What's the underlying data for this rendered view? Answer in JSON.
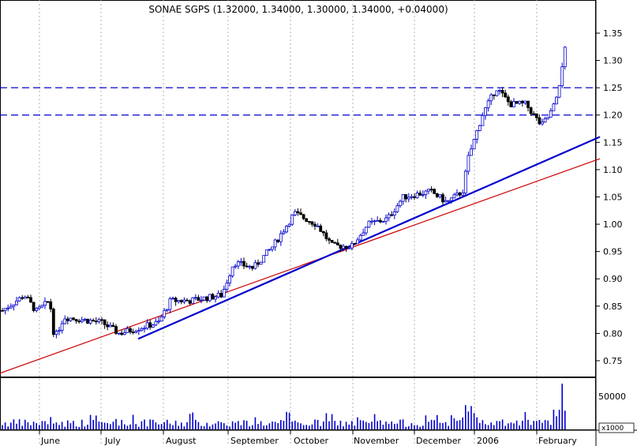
{
  "chart_data": {
    "type": "candlestick",
    "title": "SONAE SGPS (1.32000, 1.34000, 1.30000, 1.34000, +0.04000)",
    "xlabel": "",
    "ylabel": "",
    "ylim": [
      0.72,
      1.37
    ],
    "yticks": [
      "1.35",
      "1.30",
      "1.25",
      "1.20",
      "1.15",
      "1.10",
      "1.05",
      "1.00",
      "0.95",
      "0.90",
      "0.85",
      "0.80",
      "0.75"
    ],
    "x_months": [
      "June",
      "July",
      "August",
      "September",
      "October",
      "November",
      "December",
      "2006",
      "February"
    ],
    "grid": true,
    "legend": "none",
    "colors": {
      "up": "#0000cc",
      "down": "#000000",
      "trend": "#0000cc",
      "support": "#cc0000",
      "resistance": "#0000cc"
    },
    "resistance_levels": [
      1.25,
      1.2
    ],
    "trendlines": [
      {
        "name": "",
        "from_month_position": "July",
        "from_value": 0.79,
        "to_month_position": "end",
        "to_value": 1.16
      },
      {
        "name": "",
        "from_month_position": "start",
        "from_value": 0.73,
        "to_month_position": "end",
        "to_value": 1.12
      }
    ],
    "key_points": [
      {
        "x": "start",
        "y": 0.84
      },
      {
        "x": "May-end",
        "y": 0.87
      },
      {
        "x": "June",
        "y": 0.79
      },
      {
        "x": "July",
        "y": 0.8
      },
      {
        "x": "August",
        "y": 0.86
      },
      {
        "x": "September",
        "y": 0.95
      },
      {
        "x": "October",
        "y": 1.02
      },
      {
        "x": "October-late",
        "y": 0.96
      },
      {
        "x": "November",
        "y": 0.98
      },
      {
        "x": "December",
        "y": 1.06
      },
      {
        "x": "December-end",
        "y": 1.2
      },
      {
        "x": "2006",
        "y": 1.26
      },
      {
        "x": "February",
        "y": 1.18
      },
      {
        "x": "February-late",
        "y": 1.34
      }
    ],
    "volume": {
      "yticks": [
        "50000"
      ],
      "unit_label": "x1000"
    }
  }
}
